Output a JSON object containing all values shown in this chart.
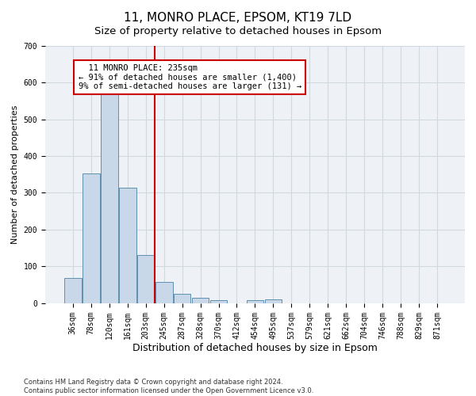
{
  "title": "11, MONRO PLACE, EPSOM, KT19 7LD",
  "subtitle": "Size of property relative to detached houses in Epsom",
  "xlabel": "Distribution of detached houses by size in Epsom",
  "ylabel": "Number of detached properties",
  "categories": [
    "36sqm",
    "78sqm",
    "120sqm",
    "161sqm",
    "203sqm",
    "245sqm",
    "287sqm",
    "328sqm",
    "370sqm",
    "412sqm",
    "454sqm",
    "495sqm",
    "537sqm",
    "579sqm",
    "621sqm",
    "662sqm",
    "704sqm",
    "746sqm",
    "788sqm",
    "829sqm",
    "871sqm"
  ],
  "values": [
    68,
    352,
    570,
    313,
    130,
    57,
    25,
    14,
    7,
    0,
    8,
    10,
    0,
    0,
    0,
    0,
    0,
    0,
    0,
    0,
    0
  ],
  "bar_color": "#c8d8e8",
  "bar_edge_color": "#6090b0",
  "annotation_line1": "11 MONRO PLACE: 235sqm",
  "annotation_line2": "← 91% of detached houses are smaller (1,400)",
  "annotation_line3": "9% of semi-detached houses are larger (131) →",
  "annotation_box_color": "#ffffff",
  "annotation_box_edge_color": "#cc0000",
  "vline_color": "#cc0000",
  "ylim": [
    0,
    700
  ],
  "yticks": [
    0,
    100,
    200,
    300,
    400,
    500,
    600,
    700
  ],
  "grid_color": "#d0d8e0",
  "bg_color": "#eef2f6",
  "footnote": "Contains HM Land Registry data © Crown copyright and database right 2024.\nContains public sector information licensed under the Open Government Licence v3.0.",
  "title_fontsize": 11,
  "subtitle_fontsize": 9.5,
  "xlabel_fontsize": 9,
  "ylabel_fontsize": 8,
  "tick_fontsize": 7,
  "annot_fontsize": 7.5,
  "footnote_fontsize": 6
}
